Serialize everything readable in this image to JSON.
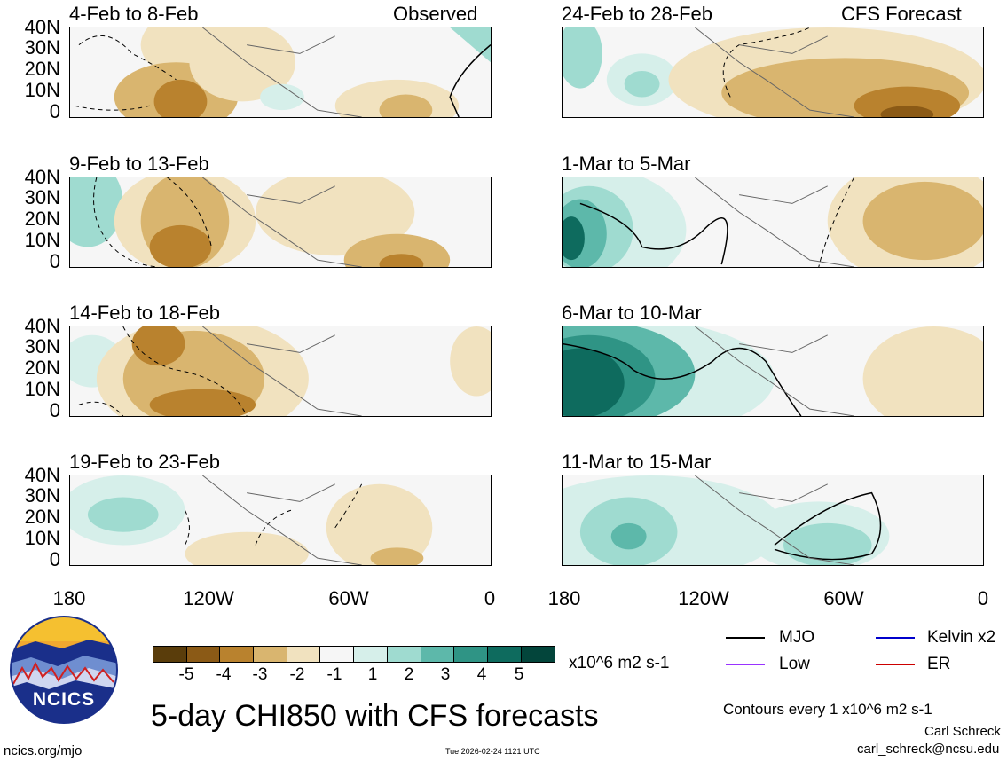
{
  "colors": {
    "brown5": "#5a3d0b",
    "brown4": "#8b5a16",
    "brown3": "#b9822e",
    "brown2": "#d9b56f",
    "brown1": "#f1e2bf",
    "neutral": "#f6f6f6",
    "teal1": "#d6efea",
    "teal2": "#9fdbd0",
    "teal3": "#5db8aa",
    "teal4": "#2f9485",
    "teal5": "#0e6b5e",
    "teal6": "#03453b"
  },
  "panels": {
    "left": [
      {
        "title": "4-Feb to 8-Feb",
        "tag": "Observed"
      },
      {
        "title": "9-Feb to 13-Feb",
        "tag": ""
      },
      {
        "title": "14-Feb to 18-Feb",
        "tag": ""
      },
      {
        "title": "19-Feb to 23-Feb",
        "tag": ""
      }
    ],
    "right": [
      {
        "title": "24-Feb to 28-Feb",
        "tag": "CFS Forecast"
      },
      {
        "title": "1-Mar to 5-Mar",
        "tag": ""
      },
      {
        "title": "6-Mar to 10-Mar",
        "tag": ""
      },
      {
        "title": "11-Mar to 15-Mar",
        "tag": ""
      }
    ]
  },
  "yticks": [
    "40N",
    "30N",
    "20N",
    "10N",
    "0"
  ],
  "xticks": [
    "180",
    "120W",
    "60W",
    "0"
  ],
  "colorbar": {
    "labels": [
      "-5",
      "-4",
      "-3",
      "-2",
      "-1",
      "1",
      "2",
      "3",
      "4",
      "5"
    ],
    "unit": "x10^6 m2 s-1"
  },
  "title": "5-day CHI850 with CFS forecasts",
  "legend": {
    "mjo": "MJO",
    "kelvin": "Kelvin x2",
    "low": "Low",
    "er": "ER",
    "contours": "Contours every 1 x10^6 m2 s-1",
    "mjo_color": "#000000",
    "kelvin_color": "#0000cc",
    "low_color": "#9933ff",
    "er_color": "#cc0000"
  },
  "logo": {
    "text": "NCICS"
  },
  "footer": {
    "site": "ncics.org/mjo",
    "timestamp": "Tue 2026-02-24 1121 UTC",
    "author": "Carl Schreck",
    "email": "carl_schreck@ncsu.edu"
  }
}
